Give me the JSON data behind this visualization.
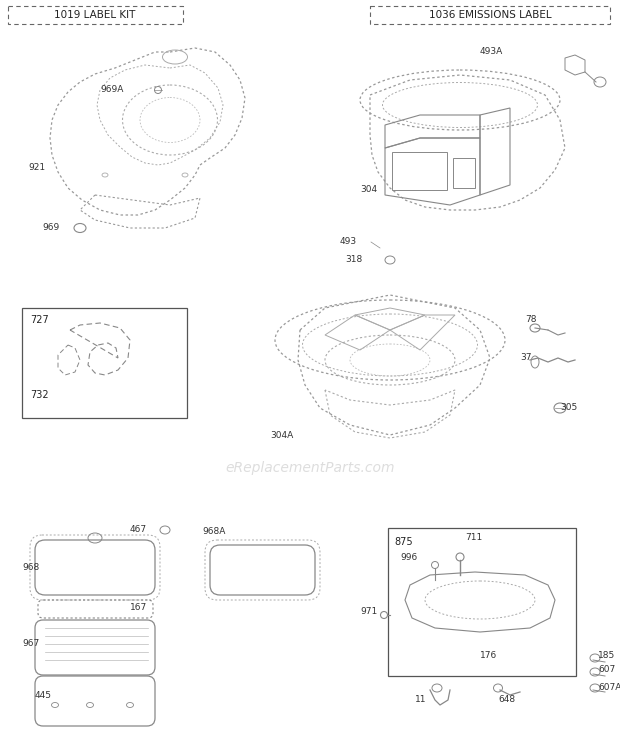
{
  "bg_color": "#ffffff",
  "line_color": "#888888",
  "text_color": "#333333",
  "watermark": "eReplacementParts.com",
  "label_box_left": "1019 LABEL KIT",
  "label_box_right": "1036 EMISSIONS LABEL",
  "figsize": [
    6.2,
    7.44
  ],
  "dpi": 100
}
